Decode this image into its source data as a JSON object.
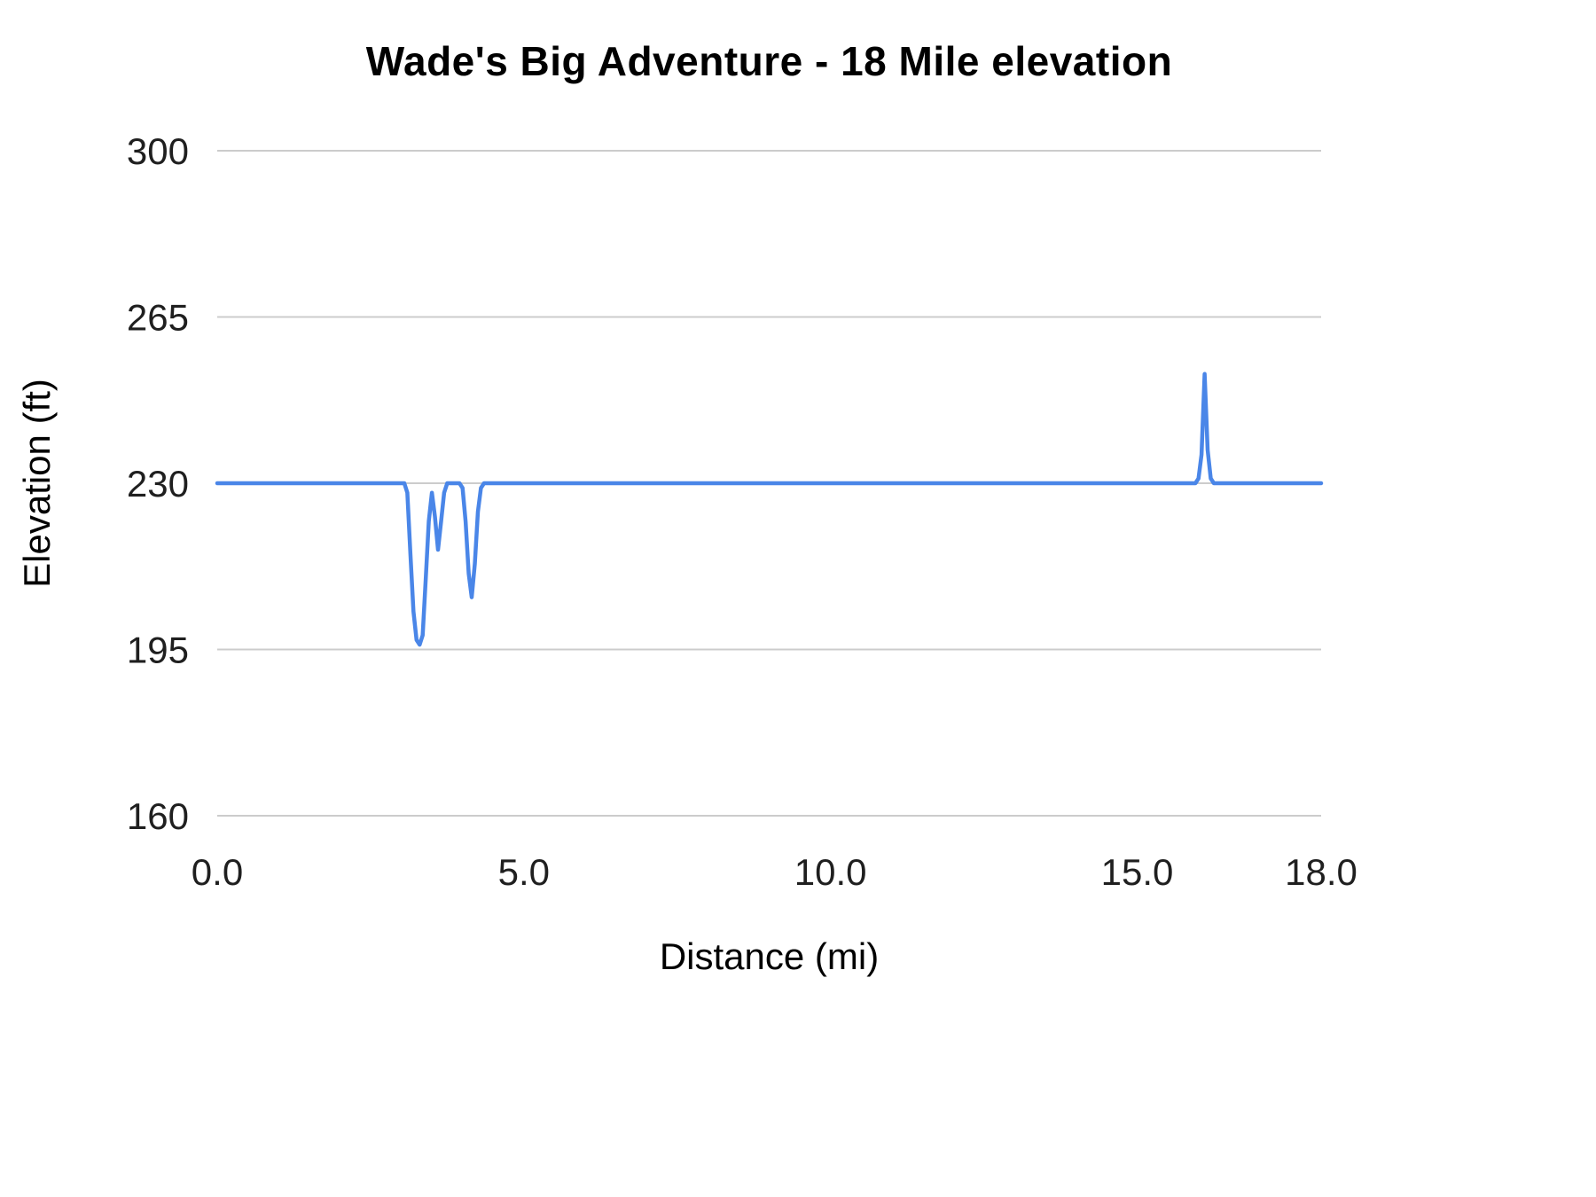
{
  "chart_data": {
    "type": "line",
    "title": "Wade's Big Adventure - 18 Mile elevation",
    "xlabel": "Distance (mi)",
    "ylabel": "Elevation (ft)",
    "xlim": [
      0,
      18
    ],
    "ylim": [
      160,
      300
    ],
    "x_ticks": [
      0,
      5,
      10,
      15,
      18
    ],
    "x_tick_labels": [
      "0.0",
      "5.0",
      "10.0",
      "15.0",
      "18.0"
    ],
    "y_ticks": [
      160,
      195,
      230,
      265,
      300
    ],
    "y_tick_labels": [
      "160",
      "195",
      "230",
      "265",
      "300"
    ],
    "grid": true,
    "legend_position": "none",
    "line_color": "#4a86e8",
    "grid_color": "#cccccc",
    "series": [
      {
        "name": "Elevation",
        "points": [
          [
            0.0,
            230
          ],
          [
            1.0,
            230
          ],
          [
            2.0,
            230
          ],
          [
            3.0,
            230
          ],
          [
            3.05,
            230
          ],
          [
            3.1,
            228
          ],
          [
            3.15,
            215
          ],
          [
            3.2,
            203
          ],
          [
            3.25,
            197
          ],
          [
            3.3,
            196
          ],
          [
            3.35,
            198
          ],
          [
            3.4,
            210
          ],
          [
            3.45,
            222
          ],
          [
            3.5,
            228
          ],
          [
            3.55,
            223
          ],
          [
            3.6,
            216
          ],
          [
            3.65,
            222
          ],
          [
            3.7,
            228
          ],
          [
            3.75,
            230
          ],
          [
            3.95,
            230
          ],
          [
            4.0,
            229
          ],
          [
            4.05,
            222
          ],
          [
            4.1,
            211
          ],
          [
            4.15,
            206
          ],
          [
            4.2,
            213
          ],
          [
            4.25,
            224
          ],
          [
            4.3,
            229
          ],
          [
            4.35,
            230
          ],
          [
            5.0,
            230
          ],
          [
            7.0,
            230
          ],
          [
            9.0,
            230
          ],
          [
            11.0,
            230
          ],
          [
            13.0,
            230
          ],
          [
            15.0,
            230
          ],
          [
            15.95,
            230
          ],
          [
            16.0,
            231
          ],
          [
            16.05,
            236
          ],
          [
            16.1,
            253
          ],
          [
            16.15,
            237
          ],
          [
            16.2,
            231
          ],
          [
            16.25,
            230
          ],
          [
            17.0,
            230
          ],
          [
            18.0,
            230
          ]
        ]
      }
    ]
  }
}
